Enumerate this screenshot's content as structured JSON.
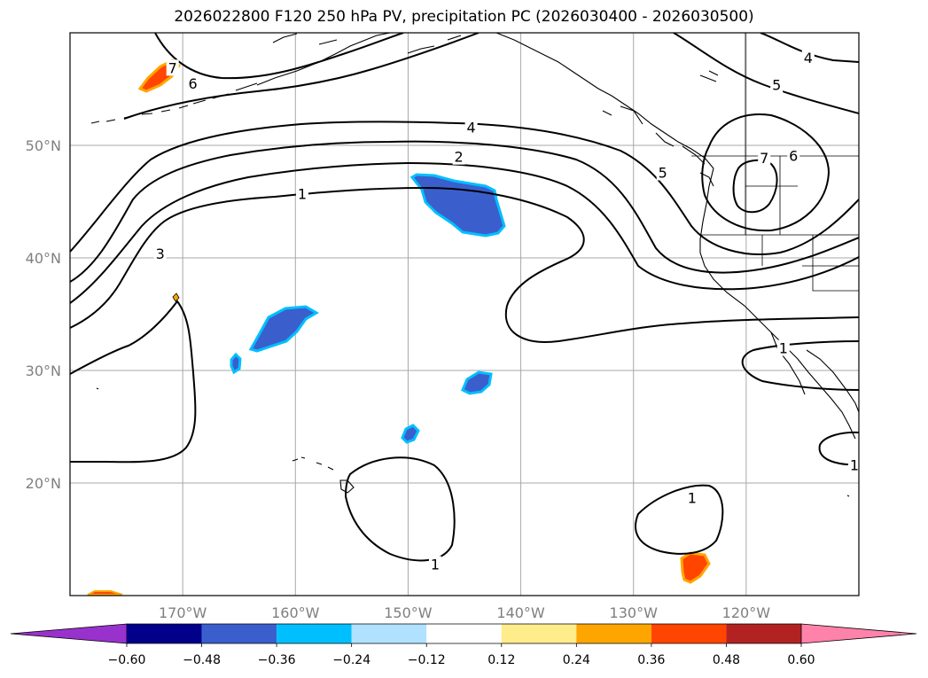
{
  "title": "2026022800 F120 250 hPa PV, precipitation PC (2026030400 - 2026030500)",
  "map": {
    "lon_range": [
      -180,
      -110
    ],
    "lat_range": [
      10,
      60
    ],
    "lat_ticks": [
      {
        "lat": 50,
        "label": "50°N"
      },
      {
        "lat": 40,
        "label": "40°N"
      },
      {
        "lat": 30,
        "label": "30°N"
      },
      {
        "lat": 20,
        "label": "20°N"
      }
    ],
    "lon_ticks": [
      {
        "lon": -170,
        "label": "170°W"
      },
      {
        "lon": -160,
        "label": "160°W"
      },
      {
        "lon": -150,
        "label": "150°W"
      },
      {
        "lon": -140,
        "label": "140°W"
      },
      {
        "lon": -130,
        "label": "130°W"
      },
      {
        "lon": -120,
        "label": "120°W"
      }
    ],
    "grid": true,
    "contour_labels": [
      {
        "text": "7",
        "lon": -170.9,
        "lat": 56.9
      },
      {
        "text": "6",
        "lon": -169.1,
        "lat": 55.5
      },
      {
        "text": "4",
        "lon": -144.4,
        "lat": 51.6
      },
      {
        "text": "2",
        "lon": -145.5,
        "lat": 49.0
      },
      {
        "text": "1",
        "lon": -159.4,
        "lat": 45.7
      },
      {
        "text": "3",
        "lon": -172.0,
        "lat": 40.4
      },
      {
        "text": "1",
        "lon": -147.6,
        "lat": 12.8
      },
      {
        "text": "1",
        "lon": -124.8,
        "lat": 18.7
      },
      {
        "text": "1",
        "lon": -116.7,
        "lat": 32.0
      },
      {
        "text": "1",
        "lon": -110.4,
        "lat": 21.6
      },
      {
        "text": "4",
        "lon": -114.5,
        "lat": 57.8
      },
      {
        "text": "5",
        "lon": -117.3,
        "lat": 55.4
      },
      {
        "text": "6",
        "lon": -115.8,
        "lat": 49.1
      },
      {
        "text": "7",
        "lon": -118.4,
        "lat": 48.9
      },
      {
        "text": "5",
        "lon": -127.4,
        "lat": 47.6
      }
    ]
  },
  "colorbar": {
    "ticks": [
      "−0.60",
      "−0.48",
      "−0.36",
      "−0.24",
      "−0.12",
      "0.12",
      "0.24",
      "0.36",
      "0.48",
      "0.60"
    ],
    "colors": [
      "#9932cc",
      "#00008b",
      "#3a5fcd",
      "#00bfff",
      "#b0e2ff",
      "#ffffff",
      "#ffec8b",
      "#ffa500",
      "#ff4500",
      "#b22222",
      "#ff82ab"
    ]
  }
}
